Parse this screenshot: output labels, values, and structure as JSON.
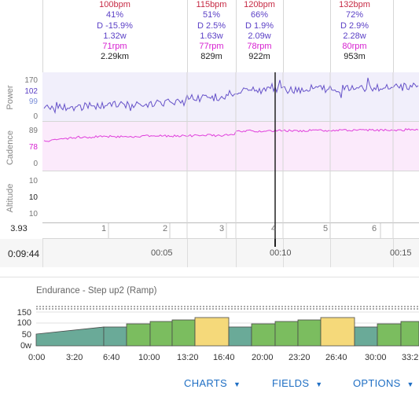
{
  "laps": [
    {
      "hr": "100bpm",
      "pct": "41%",
      "drift": "D -15.9%",
      "wkg": "1.32w",
      "cad": "71rpm",
      "dist": "2.29km"
    },
    {
      "hr": "115bpm",
      "pct": "51%",
      "drift": "D 2.5%",
      "wkg": "1.63w",
      "cad": "77rpm",
      "dist": "829m"
    },
    {
      "hr": "120bpm",
      "pct": "66%",
      "drift": "D 1.9%",
      "wkg": "2.09w",
      "cad": "78rpm",
      "dist": "922m"
    },
    {
      "hr": "132bpm",
      "pct": "72%",
      "drift": "D 2.9%",
      "wkg": "2.28w",
      "cad": "80rpm",
      "dist": "953m"
    }
  ],
  "rows": {
    "power": {
      "label": "Power",
      "max": "170",
      "avg": "102",
      "cur": "99",
      "min": "0"
    },
    "cadence": {
      "label": "Cadence",
      "max": "89",
      "cur": "78",
      "min": "0"
    },
    "altitude": {
      "label": "Altitude",
      "max": "10",
      "cur": "10",
      "min": "10"
    }
  },
  "lap_strip": {
    "value": "3.93",
    "numbers": [
      "1",
      "2",
      "3",
      "4",
      "5",
      "6"
    ]
  },
  "time_axis": {
    "current": "0:09:44",
    "ticks": [
      "00:05",
      "00:10",
      "00:15"
    ]
  },
  "workout": {
    "title": "Endurance - Step up2 (Ramp)",
    "y_ticks": [
      "150",
      "100",
      "50",
      "0w"
    ],
    "x_ticks": [
      "0:00",
      "3:20",
      "6:40",
      "10:00",
      "13:20",
      "16:40",
      "20:00",
      "23:20",
      "26:40",
      "30:00",
      "33:2"
    ],
    "colors": {
      "endurance": "#6aaa98",
      "tempo": "#7bbd5f",
      "sweetspot": "#f5d97a"
    }
  },
  "buttons": {
    "charts": "CHARTS",
    "fields": "FIELDS",
    "options": "OPTIONS"
  },
  "colors": {
    "hr": "#c62a44",
    "power": "#5b40c6",
    "cadence": "#d61fd0",
    "accent": "#1f6fc4"
  }
}
